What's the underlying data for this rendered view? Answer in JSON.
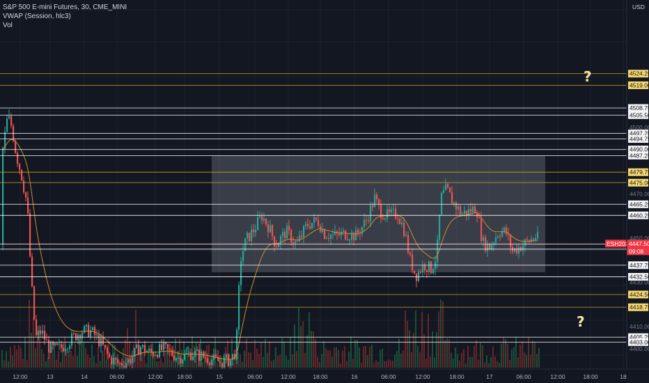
{
  "legend": {
    "symbol": "S&P 500 E-mini Futures, 30, CME_MINI",
    "vwap": "VWAP (Session, hlc3)",
    "vol": "Vol"
  },
  "price_scale": {
    "currency": "USD",
    "ticks": [
      "4500.00",
      "4470.00",
      "4450.00",
      "4410.00",
      "4400.00",
      "4430.00"
    ]
  },
  "current_price": {
    "value": "4447.50",
    "symbol": "ESH2022",
    "countdown": "09:08",
    "color": "#f23645"
  },
  "levels": [
    {
      "label": "4524.25",
      "color": "#c9a227"
    },
    {
      "label": "4519.00",
      "color": "#c9a227"
    },
    {
      "label": "4508.75",
      "color": "#ffffff"
    },
    {
      "label": "4505.50",
      "color": "#ffffff"
    },
    {
      "label": "4497.25",
      "color": "#ffffff"
    },
    {
      "label": "4494.75",
      "color": "#ffffff"
    },
    {
      "label": "4490.00",
      "color": "#ffffff"
    },
    {
      "label": "4487.25",
      "color": "#ffffff"
    },
    {
      "label": "4479.75",
      "color": "#c9a227"
    },
    {
      "label": "4475.00",
      "color": "#c9a227"
    },
    {
      "label": "4465.25",
      "color": "#ffffff"
    },
    {
      "label": "4460.25",
      "color": "#ffffff"
    },
    {
      "label": "4447.25",
      "color": "#ffffff"
    },
    {
      "label": "4445.00",
      "color": "#ffffff"
    },
    {
      "label": "4437.75",
      "color": "#ffffff"
    },
    {
      "label": "4432.50",
      "color": "#ffffff"
    },
    {
      "label": "4424.50",
      "color": "#c9a227"
    },
    {
      "label": "4418.75",
      "color": "#c9a227"
    },
    {
      "label": "4405.25",
      "color": "#ffffff"
    },
    {
      "label": "4403.00",
      "color": "#ffffff"
    }
  ],
  "time_axis": [
    "12:00",
    "13",
    "14",
    "06:00",
    "12:00",
    "18:00",
    "15",
    "06:00",
    "12:00",
    "18:00",
    "16",
    "06:00",
    "12:00",
    "18:00",
    "17",
    "06:00",
    "12:00",
    "18:00",
    "18"
  ],
  "annotations": [
    "?",
    "?"
  ],
  "colors": {
    "up": "#26a69a",
    "down": "#ef5350",
    "vwap": "#d08c2c",
    "zone": "#9aa0ab",
    "background": "#131722"
  }
}
